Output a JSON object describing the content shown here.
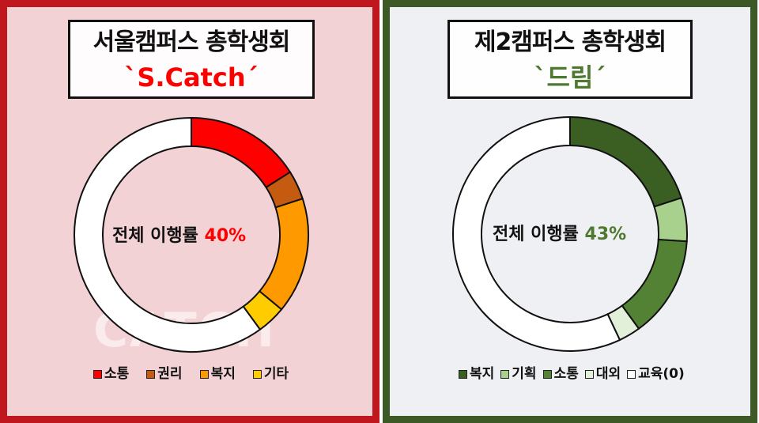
{
  "chart_data": [
    {
      "type": "pie",
      "donut": true,
      "title": "서울캠퍼스 총학생회",
      "subtitle": "`S.Catch´",
      "center_label": "전체 이행률",
      "center_value": "40%",
      "accent": "#ff0000",
      "categories": [
        "소통",
        "권리",
        "복지",
        "기타"
      ],
      "values": [
        16,
        4,
        16,
        4
      ],
      "unit": "%",
      "total": 40,
      "colors": [
        "#ff0000",
        "#c55a11",
        "#ff9900",
        "#ffcc00"
      ],
      "remainder_color": "#ffffff",
      "legend": "bottom",
      "logo_text": "CATCH"
    },
    {
      "type": "pie",
      "donut": true,
      "title": "제2캠퍼스 총학생회",
      "subtitle": "`드림´",
      "center_label": "전체 이행률",
      "center_value": "43%",
      "accent": "#4e7a2f",
      "categories": [
        "복지",
        "기획",
        "소통",
        "대외",
        "교육(0)"
      ],
      "values": [
        20,
        6,
        14,
        3,
        0
      ],
      "unit": "%",
      "total": 43,
      "colors": [
        "#3b5e22",
        "#a9d18e",
        "#548235",
        "#e2efd9",
        "#ffffff"
      ],
      "remainder_color": "#ffffff",
      "legend": "bottom"
    }
  ],
  "panels": {
    "left_border": "#c0171f",
    "right_border": "#3d5a26"
  }
}
